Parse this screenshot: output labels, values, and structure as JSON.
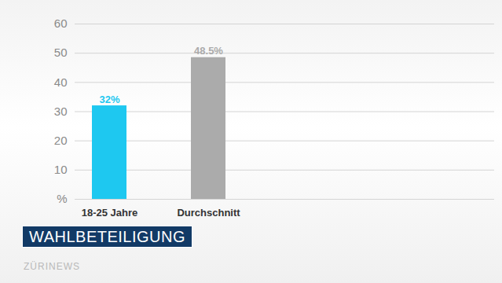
{
  "chart_data": {
    "type": "bar",
    "title": "WAHLBETEILIGUNG",
    "categories": [
      "18-25 Jahre",
      "Durchschnitt"
    ],
    "values": [
      32,
      48.5
    ],
    "value_labels": [
      "32%",
      "48.5%"
    ],
    "colors": [
      "#1ec8f0",
      "#ababab"
    ],
    "ylim": [
      0,
      60
    ],
    "yticks": [
      {
        "value": 0,
        "label": "%"
      },
      10,
      20,
      30,
      40,
      50,
      60
    ],
    "grid": true,
    "data_labels": true,
    "annotations": [
      "ZÜRINEWS"
    ]
  }
}
